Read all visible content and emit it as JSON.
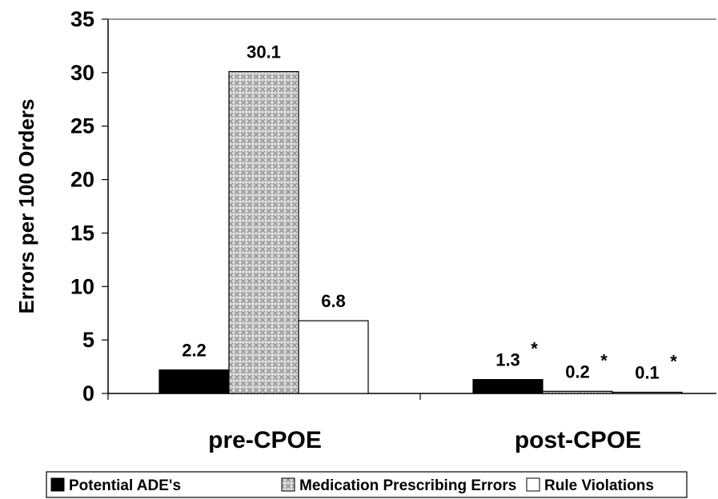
{
  "chart_data": {
    "type": "bar",
    "title": "",
    "xlabel": "",
    "ylabel": "Errors per 100 Orders",
    "ylim": [
      0,
      35
    ],
    "yticks": [
      0,
      5,
      10,
      15,
      20,
      25,
      30,
      35
    ],
    "grid": false,
    "legend_position": "bottom",
    "categories": [
      "pre-CPOE",
      "post-CPOE"
    ],
    "series": [
      {
        "name": "Potential ADE's",
        "values": [
          2.2,
          1.3
        ],
        "value_labels": [
          "2.2",
          "1.3"
        ],
        "significance": [
          "",
          "*"
        ],
        "fill": "#000000",
        "pattern": "solid"
      },
      {
        "name": "Medication Prescribing Errors",
        "values": [
          30.1,
          0.2
        ],
        "value_labels": [
          "30.1",
          "0.2"
        ],
        "significance": [
          "",
          "*"
        ],
        "fill": "#c8c8c8",
        "pattern": "crosshatch"
      },
      {
        "name": "Rule Violations",
        "values": [
          6.8,
          0.1
        ],
        "value_labels": [
          "6.8",
          "0.1"
        ],
        "significance": [
          "",
          "*"
        ],
        "fill": "#ffffff",
        "pattern": "open"
      }
    ]
  }
}
